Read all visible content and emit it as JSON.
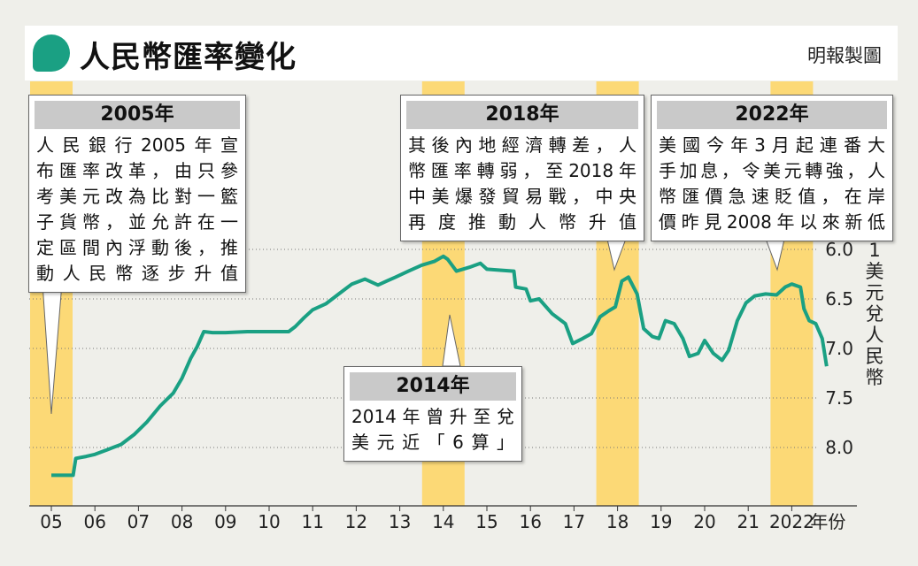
{
  "header": {
    "title": "人民幣匯率變化",
    "credit": "明報製圖"
  },
  "callouts": [
    {
      "title": "2005年",
      "lines": [
        "人民銀行2005年宣",
        "布匯率改革，由只參",
        "考美元改為比對一籃",
        "子貨幣，並允許在一",
        "定區間內浮動後，推",
        "動人民幣逐步升值"
      ]
    },
    {
      "title": "2018年",
      "lines": [
        "其後內地經濟轉差，人",
        "幣匯率轉弱，至2018年",
        "中美爆發貿易戰，中央",
        "再度推動人幣升值"
      ]
    },
    {
      "title": "2022年",
      "lines": [
        "美國今年3月起連番大",
        "手加息，令美元轉強，人",
        "幣匯價急速貶值，在岸",
        "價昨見2008年以來新低"
      ]
    },
    {
      "title": "2014年",
      "lines": [
        "2014年曾升至兌",
        "美元近「6算」"
      ]
    }
  ],
  "colors": {
    "line": "#1aa083",
    "highlight": "#fcd976",
    "accent": "#1aa083"
  },
  "chart_data": {
    "type": "line",
    "xlabel_suffix": "年份",
    "x_ticks": [
      "05",
      "06",
      "07",
      "08",
      "09",
      "10",
      "11",
      "12",
      "13",
      "14",
      "15",
      "16",
      "17",
      "18",
      "19",
      "20",
      "21",
      "2022"
    ],
    "y_ticks": [
      "6.0",
      "6.5",
      "7.0",
      "7.5",
      "8.0"
    ],
    "ylabel": "1美元兌人民幣",
    "ylim": [
      6.0,
      8.25
    ],
    "y_inverted": true,
    "highlight_years": [
      2005,
      2014,
      2018,
      2022
    ],
    "series": [
      {
        "values": [
          [
            2005.0,
            8.28
          ],
          [
            2005.5,
            8.28
          ],
          [
            2005.56,
            8.11
          ],
          [
            2005.8,
            8.09
          ],
          [
            2006.0,
            8.07
          ],
          [
            2006.3,
            8.02
          ],
          [
            2006.6,
            7.97
          ],
          [
            2006.9,
            7.87
          ],
          [
            2007.2,
            7.74
          ],
          [
            2007.5,
            7.58
          ],
          [
            2007.8,
            7.45
          ],
          [
            2008.0,
            7.3
          ],
          [
            2008.2,
            7.1
          ],
          [
            2008.35,
            6.98
          ],
          [
            2008.5,
            6.83
          ],
          [
            2008.7,
            6.84
          ],
          [
            2009.0,
            6.84
          ],
          [
            2009.5,
            6.83
          ],
          [
            2009.9,
            6.83
          ],
          [
            2010.2,
            6.83
          ],
          [
            2010.45,
            6.83
          ],
          [
            2010.6,
            6.78
          ],
          [
            2010.8,
            6.69
          ],
          [
            2011.0,
            6.61
          ],
          [
            2011.3,
            6.55
          ],
          [
            2011.6,
            6.45
          ],
          [
            2011.9,
            6.35
          ],
          [
            2012.2,
            6.3
          ],
          [
            2012.5,
            6.36
          ],
          [
            2012.7,
            6.32
          ],
          [
            2012.9,
            6.28
          ],
          [
            2013.2,
            6.22
          ],
          [
            2013.5,
            6.16
          ],
          [
            2013.8,
            6.12
          ],
          [
            2014.0,
            6.07
          ],
          [
            2014.1,
            6.1
          ],
          [
            2014.3,
            6.22
          ],
          [
            2014.6,
            6.18
          ],
          [
            2014.85,
            6.14
          ],
          [
            2015.0,
            6.2
          ],
          [
            2015.3,
            6.21
          ],
          [
            2015.62,
            6.22
          ],
          [
            2015.66,
            6.38
          ],
          [
            2015.9,
            6.4
          ],
          [
            2016.0,
            6.52
          ],
          [
            2016.2,
            6.5
          ],
          [
            2016.5,
            6.65
          ],
          [
            2016.8,
            6.75
          ],
          [
            2016.97,
            6.95
          ],
          [
            2017.2,
            6.9
          ],
          [
            2017.4,
            6.85
          ],
          [
            2017.6,
            6.68
          ],
          [
            2017.8,
            6.62
          ],
          [
            2017.95,
            6.58
          ],
          [
            2018.1,
            6.32
          ],
          [
            2018.25,
            6.28
          ],
          [
            2018.45,
            6.45
          ],
          [
            2018.6,
            6.8
          ],
          [
            2018.8,
            6.88
          ],
          [
            2018.95,
            6.9
          ],
          [
            2019.1,
            6.72
          ],
          [
            2019.3,
            6.75
          ],
          [
            2019.5,
            6.9
          ],
          [
            2019.65,
            7.08
          ],
          [
            2019.85,
            7.05
          ],
          [
            2020.0,
            6.92
          ],
          [
            2020.2,
            7.05
          ],
          [
            2020.4,
            7.12
          ],
          [
            2020.55,
            7.02
          ],
          [
            2020.75,
            6.72
          ],
          [
            2020.95,
            6.54
          ],
          [
            2021.15,
            6.47
          ],
          [
            2021.4,
            6.45
          ],
          [
            2021.65,
            6.46
          ],
          [
            2021.85,
            6.38
          ],
          [
            2022.0,
            6.35
          ],
          [
            2022.2,
            6.38
          ],
          [
            2022.28,
            6.6
          ],
          [
            2022.4,
            6.72
          ],
          [
            2022.55,
            6.75
          ],
          [
            2022.7,
            6.9
          ],
          [
            2022.8,
            7.18
          ]
        ]
      }
    ]
  }
}
